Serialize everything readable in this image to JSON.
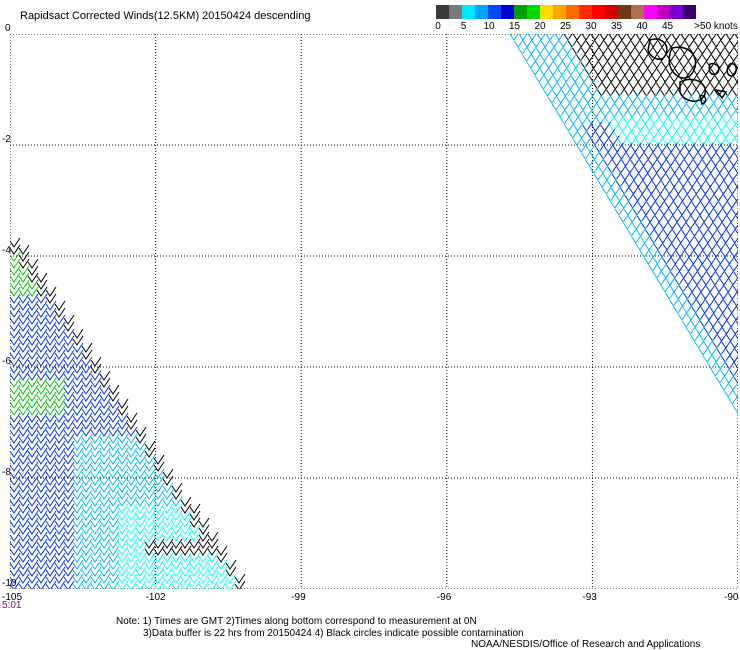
{
  "title": "Rapidsact Corrected Winds(12.5KM) 20150424 descending",
  "legend": {
    "labels": [
      "0",
      "5",
      "10",
      "15",
      "20",
      "25",
      "30",
      "35",
      "40",
      "45",
      ">50 knots"
    ],
    "colors": [
      "#3a3a3a",
      "#7a7a7a",
      "#00e5ff",
      "#00a5ff",
      "#0046ff",
      "#0000cc",
      "#00a000",
      "#00d800",
      "#ffd800",
      "#ffa500",
      "#ff6a00",
      "#ff2a00",
      "#ff0000",
      "#d00000",
      "#6b3a1a",
      "#b07050",
      "#ff00ff",
      "#c000c0",
      "#7800d0",
      "#3a006a"
    ]
  },
  "map": {
    "lon_range": [
      -105,
      -90
    ],
    "lat_range": [
      -10,
      0
    ],
    "lon_ticks": [
      "-105",
      "-102",
      "-99",
      "-96",
      "-93",
      "-90"
    ],
    "lat_ticks": [
      "0",
      "-2",
      "-4",
      "-6",
      "-8",
      "-10"
    ],
    "gridlines": true,
    "barb_colors": {
      "calm": "#000000",
      "light": "#00b8ff",
      "blue": "#0030ff",
      "cyan": "#00ffff",
      "green": "#00c800"
    }
  },
  "time_label": "5:01",
  "notes": {
    "line1": "Note: 1) Times are GMT 2)Times along bottom correspond to measurement at 0N",
    "line2": "3)Data buffer is 22 hrs from 20150424 4) Black circles indicate possible contamination",
    "credit": "NOAA/NESDIS/Office of Research and Applications"
  }
}
